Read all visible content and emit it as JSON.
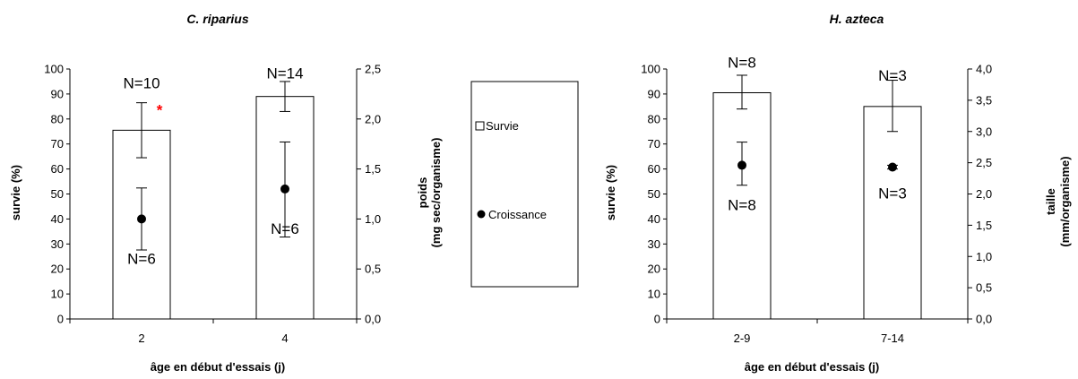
{
  "chart_data": [
    {
      "type": "bar",
      "title": "C. riparius",
      "xlabel": "âge en début d'essais (j)",
      "ylabel": "survie (%)",
      "y2label_line1": "poids",
      "y2label_line2": "(mg sec/organisme)",
      "categories": [
        "2",
        "4"
      ],
      "ylim": [
        0,
        100
      ],
      "yticks": [
        "0",
        "10",
        "20",
        "30",
        "40",
        "50",
        "60",
        "70",
        "80",
        "90",
        "100"
      ],
      "y2lim": [
        0,
        2.5
      ],
      "y2ticks": [
        "0,0",
        "0,5",
        "1,0",
        "1,5",
        "2,0",
        "2,5"
      ],
      "series": [
        {
          "name": "Survie",
          "type": "bar",
          "axis": "left",
          "values": [
            75.5,
            89
          ],
          "err_low": [
            64.5,
            83
          ],
          "err_high": [
            86.5,
            95
          ]
        },
        {
          "name": "Croissance",
          "type": "point",
          "axis": "right",
          "values": [
            1.0,
            1.3
          ],
          "err_low": [
            0.69,
            0.82
          ],
          "err_high": [
            1.31,
            1.77
          ]
        }
      ],
      "bar_n_labels": [
        "N=10",
        "N=14"
      ],
      "point_n_labels": [
        "N=6",
        "N=6"
      ],
      "annotations": [
        {
          "text": "*",
          "category": "2",
          "color": "#ff0000"
        }
      ]
    },
    {
      "type": "bar",
      "title": "H. azteca",
      "xlabel": "âge en début d'essais (j)",
      "ylabel": "survie (%)",
      "y2label_line1": "taille",
      "y2label_line2": "(mm/organisme)",
      "categories": [
        "2-9",
        "7-14"
      ],
      "ylim": [
        0,
        100
      ],
      "yticks": [
        "0",
        "10",
        "20",
        "30",
        "40",
        "50",
        "60",
        "70",
        "80",
        "90",
        "100"
      ],
      "y2lim": [
        0,
        4.0
      ],
      "y2ticks": [
        "0,0",
        "0,5",
        "1,0",
        "1,5",
        "2,0",
        "2,5",
        "3,0",
        "3,5",
        "4,0"
      ],
      "series": [
        {
          "name": "Survie",
          "type": "bar",
          "axis": "left",
          "values": [
            90.5,
            85
          ],
          "err_low": [
            84,
            75
          ],
          "err_high": [
            97.5,
            95.5
          ]
        },
        {
          "name": "Croissance",
          "type": "point",
          "axis": "right",
          "values": [
            2.46,
            2.43
          ],
          "err_low": [
            2.14,
            2.4
          ],
          "err_high": [
            2.83,
            2.46
          ]
        }
      ],
      "bar_n_labels": [
        "N=8",
        "N=3"
      ],
      "point_n_labels": [
        "N=8",
        "N=3"
      ]
    }
  ],
  "legend": {
    "items": [
      {
        "label": "Survie",
        "symbol": "square-outline"
      },
      {
        "label": "Croissance",
        "symbol": "filled-circle"
      }
    ]
  }
}
